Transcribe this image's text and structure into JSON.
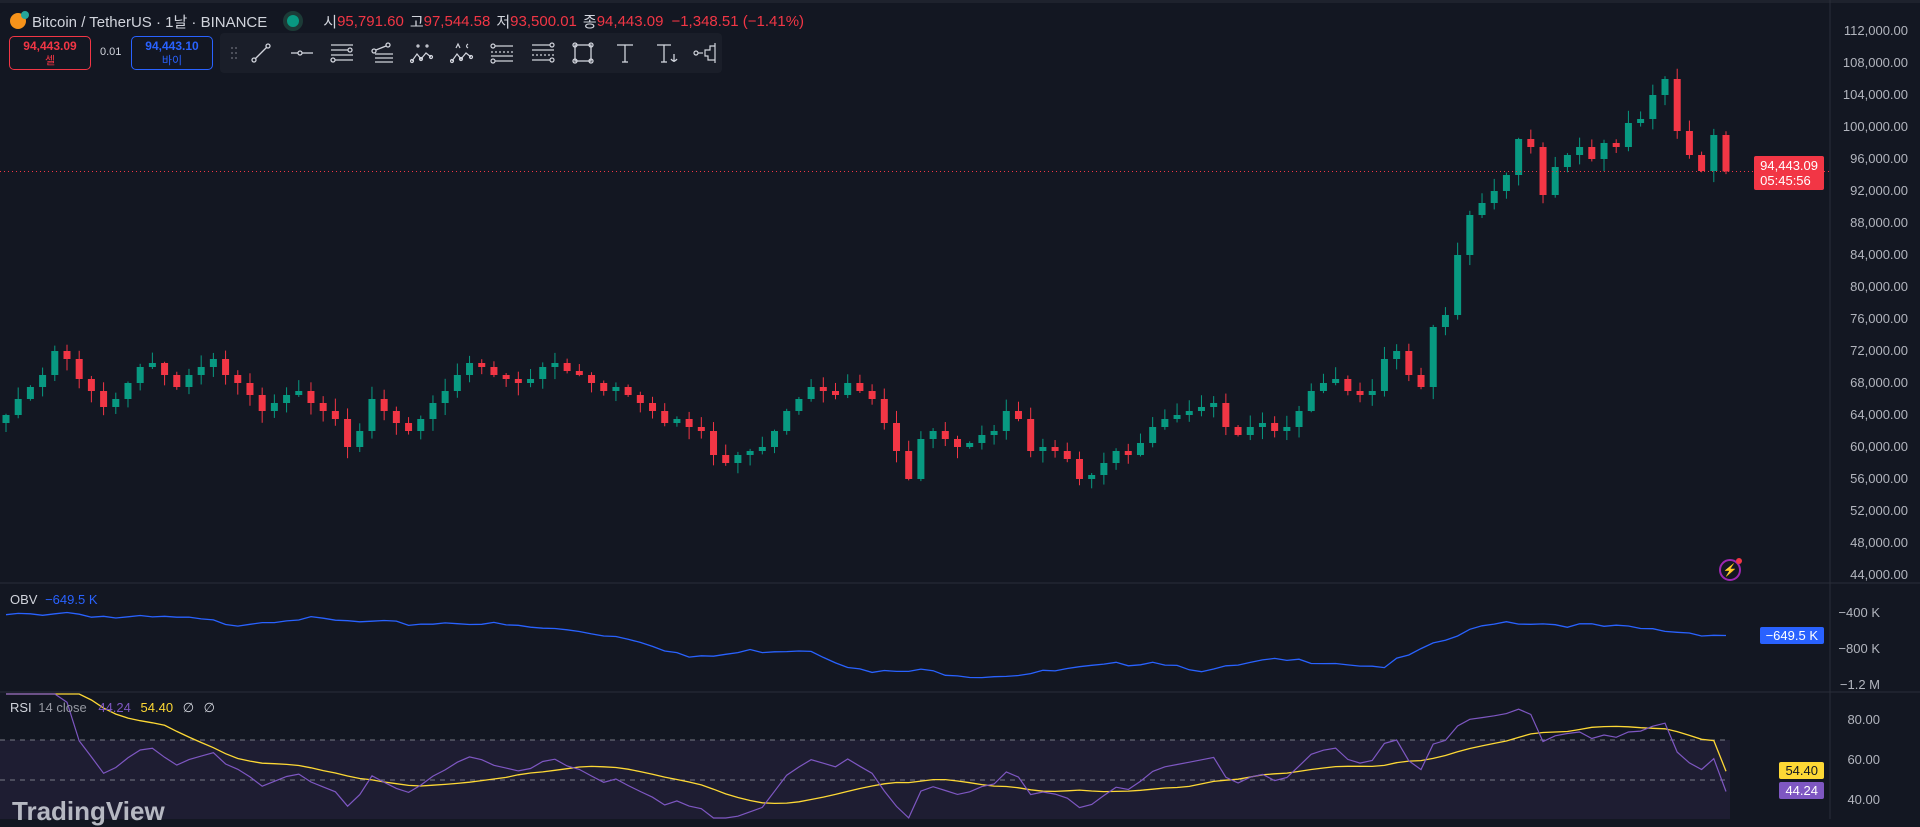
{
  "header": {
    "title": "Bitcoin / TetherUS · 1날 · BINANCE",
    "open_label": "시",
    "open": "95,791.60",
    "high_label": "고",
    "high": "97,544.58",
    "low_label": "저",
    "low": "93,500.01",
    "close_label": "종",
    "close": "94,443.09",
    "change": "−1,348.51 (−1.41%)"
  },
  "trade": {
    "sell_price": "94,443.09",
    "sell_label": "셀",
    "spread": "0.01",
    "buy_price": "94,443.10",
    "buy_label": "바이"
  },
  "toolbar": [
    "trend-line",
    "horizontal-ray",
    "parallel-channel",
    "pitchfork",
    "elliott-wave-15",
    "abcd-pattern",
    "fib-retracement",
    "fib-extension",
    "rectangle",
    "text",
    "anchored-text",
    "volume-profile"
  ],
  "price_axis": [
    "112,000.00",
    "108,000.00",
    "104,000.00",
    "100,000.00",
    "96,000.00",
    "92,000.00",
    "88,000.00",
    "84,000.00",
    "80,000.00",
    "76,000.00",
    "72,000.00",
    "68,000.00",
    "64,000.00",
    "60,000.00",
    "56,000.00",
    "52,000.00",
    "48,000.00",
    "44,000.00"
  ],
  "last_price": {
    "value": 94443.09,
    "label": "94,443.09",
    "countdown": "05:45:56"
  },
  "colors": {
    "up": "#089981",
    "down": "#f23645",
    "obv": "#2962ff",
    "rsi": "#7e57c2",
    "rsi_ma": "#fdd835"
  },
  "chart_data": {
    "type": "candlestick",
    "unit": "thousand USDT",
    "closes": [
      64,
      66,
      67.5,
      69,
      72,
      71,
      68.5,
      67,
      65,
      66,
      68,
      70,
      70.5,
      69,
      67.5,
      69,
      70,
      71,
      69,
      68,
      66.5,
      64.5,
      65.5,
      66.5,
      67,
      65.5,
      64.5,
      63.5,
      60,
      62,
      66,
      64.5,
      63,
      62,
      63.5,
      65.5,
      67,
      69,
      70.5,
      70,
      69,
      68.5,
      68,
      68.5,
      70,
      70.5,
      69.5,
      69,
      68,
      67,
      67.5,
      66.5,
      65.5,
      64.5,
      63,
      63.5,
      62.5,
      62,
      59,
      58,
      59,
      59.5,
      60,
      62,
      64.5,
      66,
      67.5,
      67,
      66.5,
      68,
      67,
      66,
      63,
      59.5,
      56,
      61,
      62,
      61,
      60,
      60.5,
      61.5,
      62,
      64.5,
      63.5,
      59.5,
      60,
      59.5,
      58.5,
      56,
      56.5,
      58,
      59.5,
      59,
      60.5,
      62.5,
      63.5,
      64,
      64.5,
      65,
      65.5,
      62.5,
      61.5,
      62.5,
      63,
      62,
      62.5,
      64.5,
      67,
      68,
      68.5,
      67,
      66.5,
      67,
      71,
      72,
      69,
      67.5,
      75,
      76.5,
      84,
      89,
      90.5,
      92,
      94,
      98.5,
      97.5,
      91.5,
      95,
      96.5,
      97.5,
      96,
      98,
      97.5,
      100.5,
      101,
      104,
      106,
      99.5,
      96.5,
      94.5,
      99,
      94.443
    ],
    "price_range": [
      44000,
      112000
    ]
  },
  "obv": {
    "label": "OBV",
    "value": "−649.5 K",
    "series_k": [
      -433,
      -389,
      -456,
      -456,
      -522,
      -456,
      -500,
      -522,
      -500,
      -556,
      -600,
      -689,
      -911,
      -822,
      -800,
      -1067,
      -1044,
      -1100,
      -1067,
      -1000,
      -933,
      -1044,
      -933,
      -933,
      -1000,
      -733,
      -489,
      -522,
      -556,
      -600,
      -649.5
    ],
    "axis": [
      {
        "label": "−400 K",
        "value": -400
      },
      {
        "label": "−800 K",
        "value": -800
      },
      {
        "label": "−1.2 M",
        "value": -1200
      }
    ],
    "current": -649.5
  },
  "rsi": {
    "label": "RSI",
    "params": "14 close",
    "value": "44.24",
    "ma_value": "54.40",
    "extra1": "∅",
    "extra2": "∅",
    "axis": [
      {
        "label": "80.00",
        "value": 80
      },
      {
        "label": "60.00",
        "value": 60
      },
      {
        "label": "40.00",
        "value": 40
      }
    ],
    "current": 44.24,
    "ma_current": 54.4
  },
  "watermark": "TradingView"
}
